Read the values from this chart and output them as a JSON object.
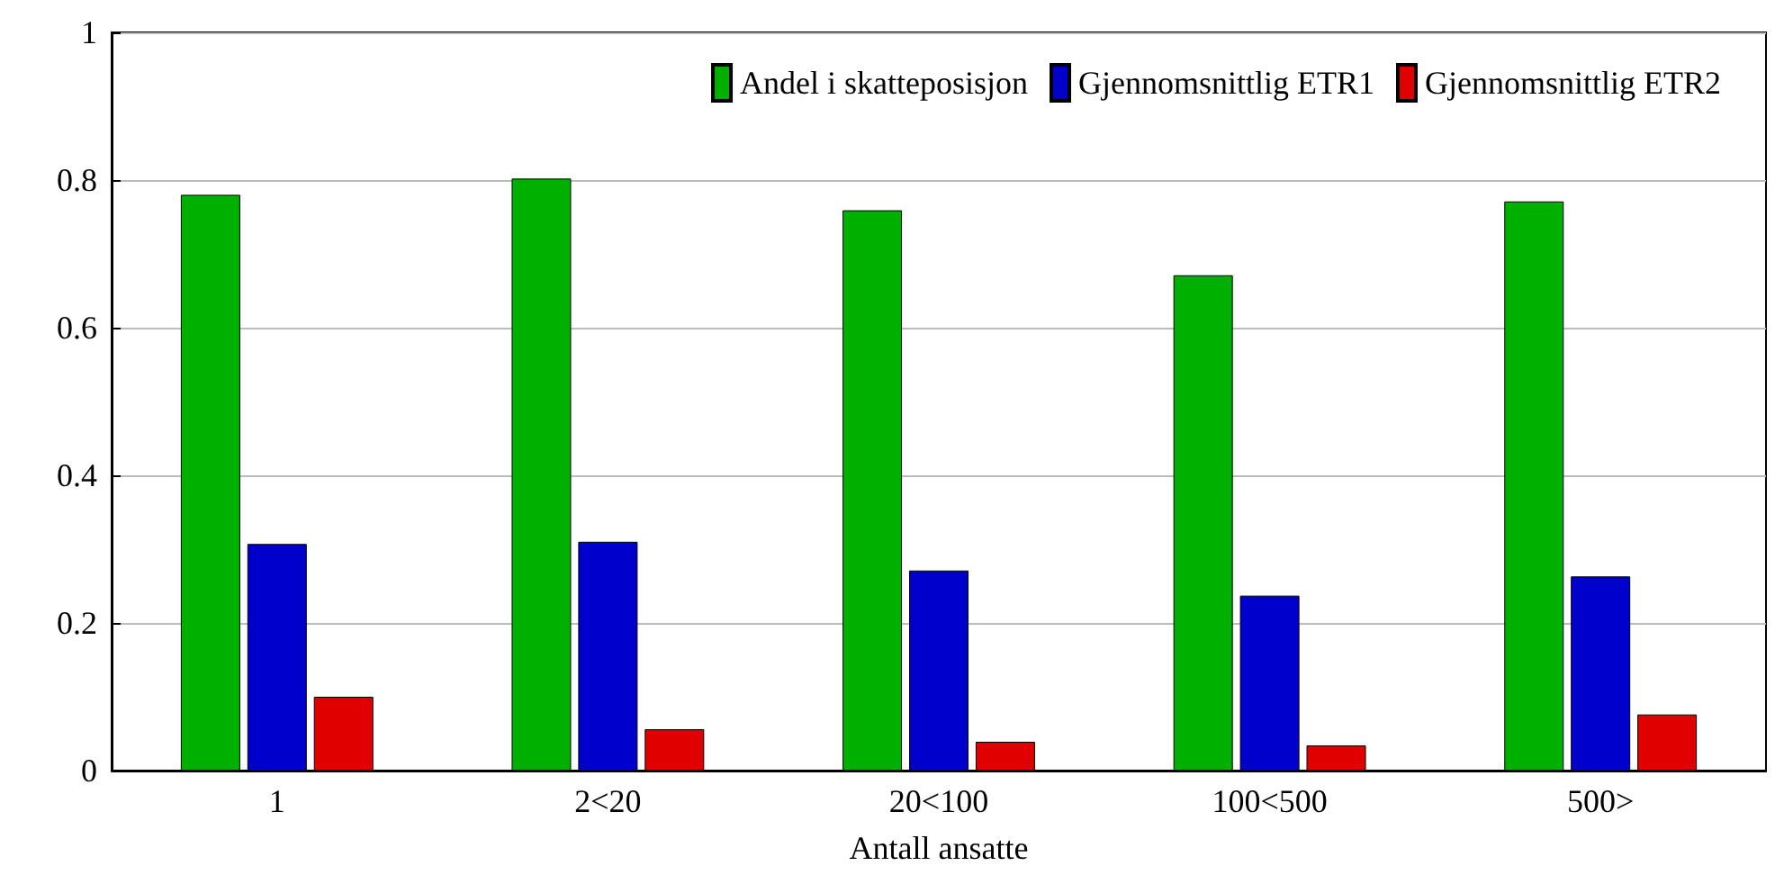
{
  "chart_data": {
    "type": "bar",
    "xlabel": "Antall ansatte",
    "categories": [
      "1",
      "2<20",
      "20<100",
      "100<500",
      "500>"
    ],
    "series": [
      {
        "name": "Andel i skatteposisjon",
        "color": "#00b000",
        "values": [
          0.78,
          0.802,
          0.759,
          0.671,
          0.771
        ]
      },
      {
        "name": "Gjennomsnittlig ETR1",
        "color": "#0000cc",
        "values": [
          0.307,
          0.31,
          0.271,
          0.237,
          0.263
        ]
      },
      {
        "name": "Gjennomsnittlig ETR2",
        "color": "#e00000",
        "values": [
          0.1,
          0.056,
          0.039,
          0.034,
          0.076
        ]
      }
    ],
    "ylim": [
      0,
      1
    ],
    "yticks": [
      0,
      0.2,
      0.4,
      0.6,
      0.8,
      1
    ],
    "grid": "y",
    "legend": "top right"
  }
}
